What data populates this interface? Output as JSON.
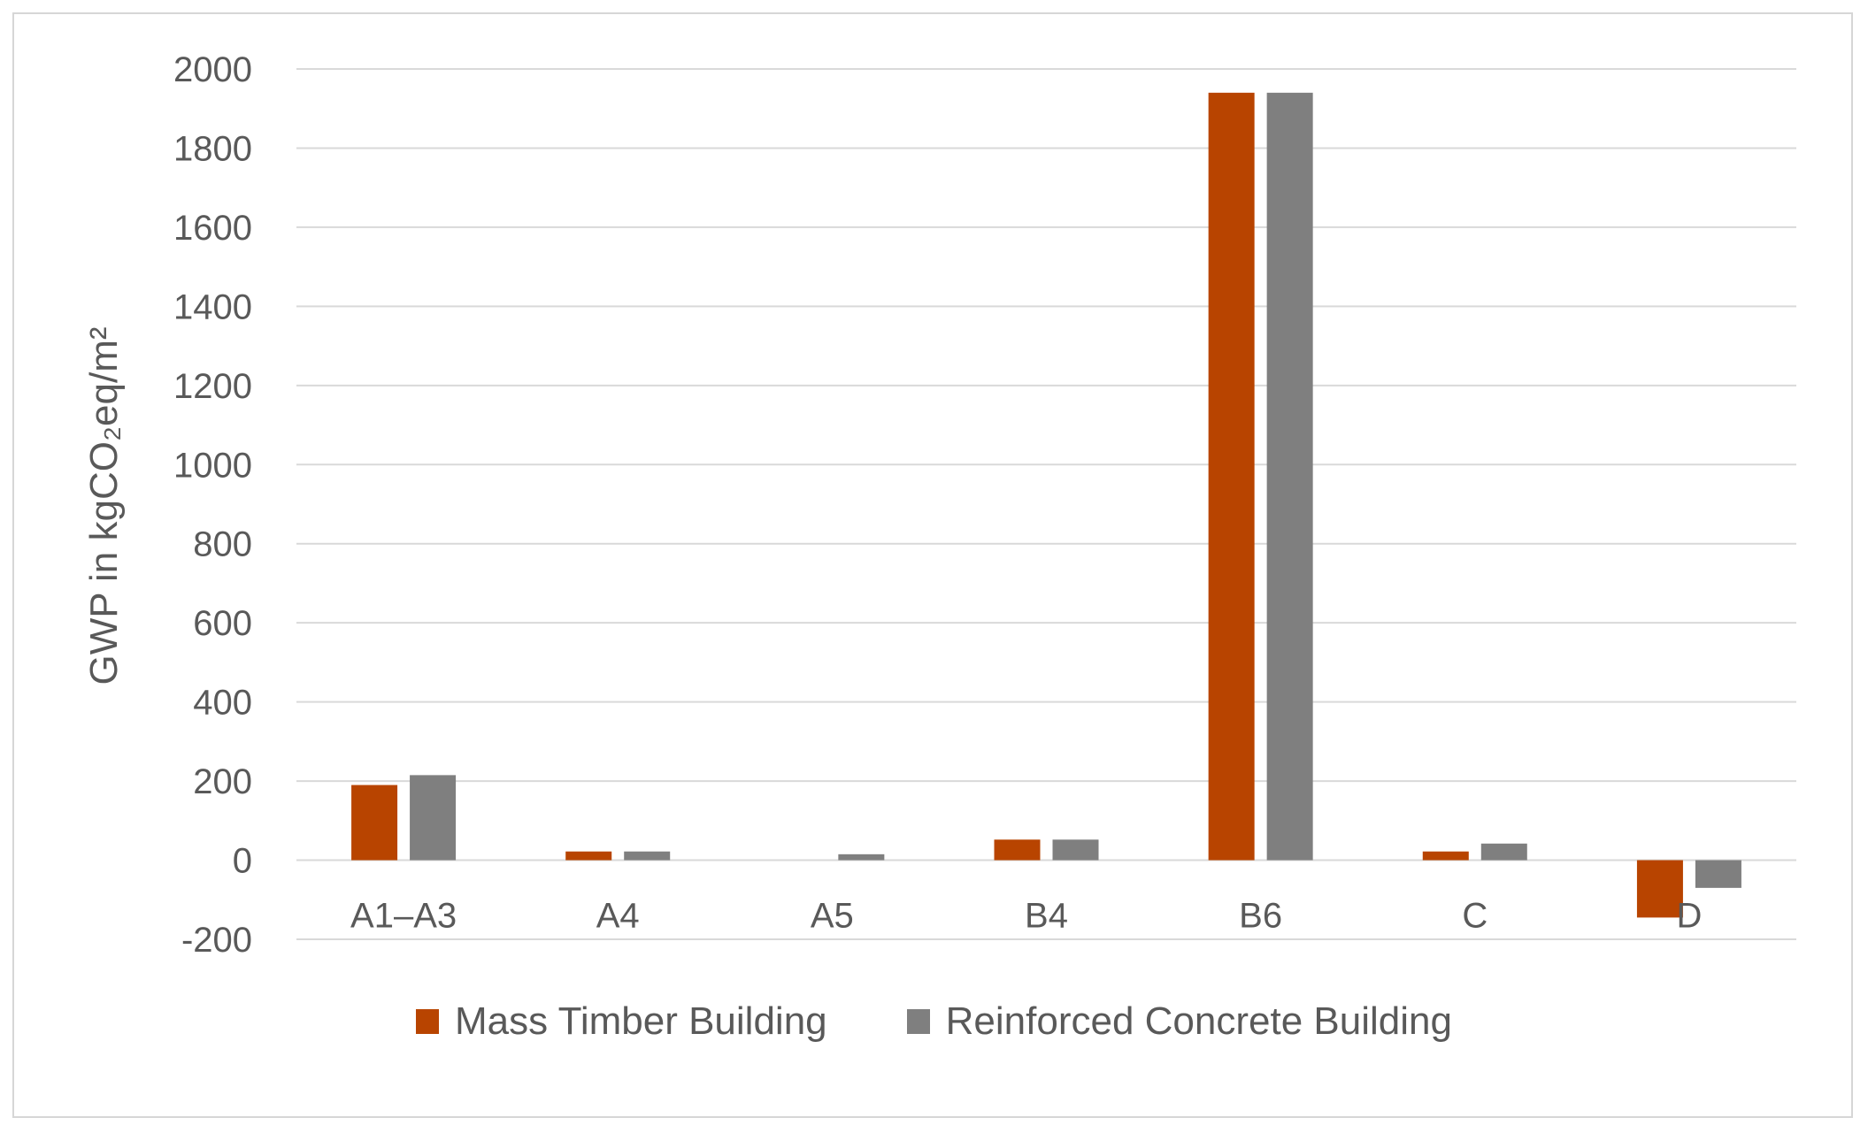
{
  "chart_data": {
    "type": "bar",
    "title": "",
    "xlabel": "",
    "ylabel": "GWP in kgCO₂eq/m²",
    "categories": [
      "A1–A3",
      "A4",
      "A5",
      "B4",
      "B6",
      "C",
      "D"
    ],
    "series": [
      {
        "name": "Mass Timber Building",
        "color": "#b84400",
        "values": [
          190,
          22,
          0,
          52,
          1940,
          22,
          -145
        ]
      },
      {
        "name": "Reinforced Concrete Building",
        "color": "#7f7f7f",
        "values": [
          215,
          22,
          15,
          52,
          1940,
          42,
          -70
        ]
      }
    ],
    "ylim": [
      -200,
      2000
    ],
    "yticks": [
      -200,
      0,
      200,
      400,
      600,
      800,
      1000,
      1200,
      1400,
      1600,
      1800,
      2000
    ],
    "grid": true,
    "legend_position": "bottom"
  }
}
